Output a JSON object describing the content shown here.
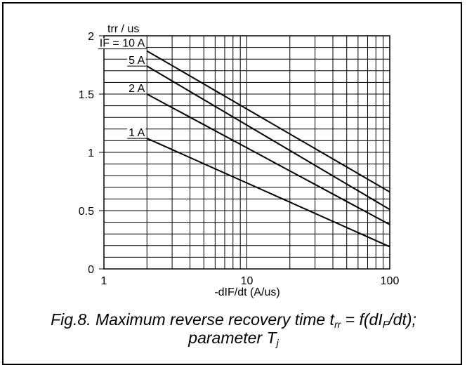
{
  "chart_data": {
    "type": "line",
    "xscale": "log",
    "xlim": [
      1,
      100
    ],
    "ylim": [
      0,
      2
    ],
    "xlabel": "-dIF/dt (A/us)",
    "ylabel": "trr / us",
    "x_ticks": [
      "1",
      "10",
      "100"
    ],
    "y_ticks": [
      "0",
      "0.5",
      "1",
      "1.5",
      "2"
    ],
    "grid": true,
    "series": [
      {
        "name": "IF = 10 A",
        "x": [
          2,
          100
        ],
        "y": [
          1.87,
          0.66
        ]
      },
      {
        "name": "5 A",
        "x": [
          2,
          100
        ],
        "y": [
          1.74,
          0.51
        ]
      },
      {
        "name": "2 A",
        "x": [
          2,
          100
        ],
        "y": [
          1.5,
          0.38
        ]
      },
      {
        "name": "1 A",
        "x": [
          2,
          100
        ],
        "y": [
          1.12,
          0.19
        ]
      }
    ]
  },
  "caption": {
    "line1_prefix": "Fig.8.   Maximum reverse recovery time t",
    "line1_sub1": "rr",
    "line1_mid": " = f(dI",
    "line1_sub2": "F",
    "line1_suffix": "/dt);",
    "line2_prefix": "parameter T",
    "line2_sub": "j"
  }
}
